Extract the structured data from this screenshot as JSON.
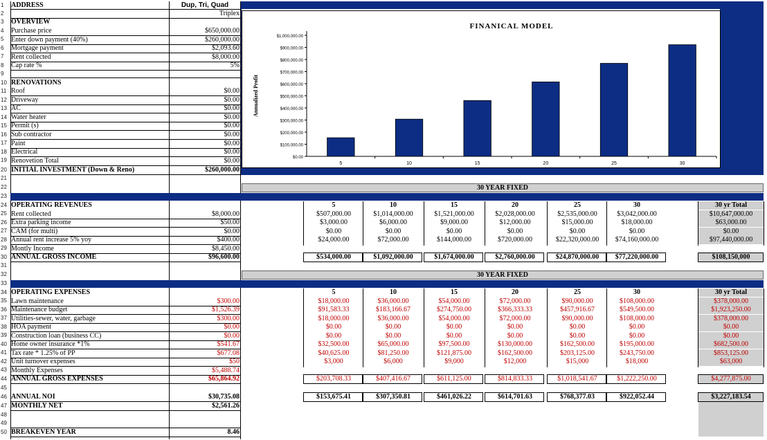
{
  "rows": {
    "1": "1",
    "2": "2",
    "3": "3",
    "4": "4",
    "5": "5",
    "6": "6",
    "7": "7",
    "8": "8",
    "9": "9",
    "10": "10",
    "11": "11",
    "12": "12",
    "13": "13",
    "14": "14",
    "15": "15",
    "16": "16",
    "17": "17",
    "18": "18",
    "19": "19",
    "20": "20",
    "21": "21",
    "22": "22",
    "23": "23",
    "24": "24",
    "25": "25",
    "26": "26",
    "27": "27",
    "28": "28",
    "29": "29",
    "30": "30",
    "31": "31",
    "32": "32",
    "33": "33",
    "34": "34",
    "35": "35",
    "36": "36",
    "37": "37",
    "38": "38",
    "39": "39",
    "40": "40",
    "41": "41",
    "42": "42",
    "43": "43",
    "44": "44",
    "45": "45",
    "46": "46",
    "47": "47",
    "48": "48",
    "49": "49",
    "50": "50"
  },
  "header": {
    "address": "ADDRESS",
    "type_label": "Dup, Tri, Quad",
    "type_value": "Triplex"
  },
  "overview": {
    "title": "OVERVIEW",
    "items": [
      {
        "label": "Purchase price",
        "value": "$650,000.00"
      },
      {
        "label": "Enter down payment (40%)",
        "value": "$260,000.00"
      },
      {
        "label": "Mortgage payment",
        "value": "$2,093.60"
      },
      {
        "label": "Rent collected",
        "value": "$8,000.00"
      },
      {
        "label": "Cap rate %",
        "value": "5%"
      }
    ]
  },
  "renovations": {
    "title": "RENOVATIONS",
    "items": [
      {
        "label": "Roof",
        "value": "$0.00"
      },
      {
        "label": "Driveway",
        "value": "$0.00"
      },
      {
        "label": "AC",
        "value": "$0.00"
      },
      {
        "label": "Water heater",
        "value": "$0.00"
      },
      {
        "label": "Permit (s)",
        "value": "$0.00"
      },
      {
        "label": "Sub contractor",
        "value": "$0.00"
      },
      {
        "label": "Paint",
        "value": "$0.00"
      },
      {
        "label": "Electrical",
        "value": "$0.00"
      },
      {
        "label": "Renovetion Total",
        "value": "$0.00"
      }
    ],
    "initial_label": "INITIAL INVESTMENT (Down & Reno)",
    "initial_value": "$260,000.00"
  },
  "chart_data": {
    "type": "bar",
    "title": "FINANICAL MODEL",
    "ylabel": "Annualized Profit",
    "xlabel": "",
    "categories": [
      "5",
      "10",
      "15",
      "20",
      "25",
      "30"
    ],
    "values": [
      153675.41,
      307350.81,
      461026.22,
      614701.63,
      768377.03,
      922052.44
    ],
    "ylim": [
      0,
      1000000
    ],
    "yticks": [
      "$0.00",
      "$100,000.00",
      "$200,000.00",
      "$300,000.00",
      "$400,000.00",
      "$500,000.00",
      "$600,000.00",
      "$700,000.00",
      "$800,000.00",
      "$900,000.00",
      "$1,000,000.00"
    ],
    "bar_color": "#0c2d83",
    "grid": false
  },
  "fixed_label": "30 YEAR FIXED",
  "years": [
    "5",
    "10",
    "15",
    "20",
    "25",
    "30"
  ],
  "total_header": "30 yr Total",
  "revenues": {
    "title": "OPERATING REVENUES",
    "rows": [
      {
        "label": "Rent collected",
        "value": "$8,000.00",
        "cols": [
          "$507,000.00",
          "$1,014,000.00",
          "$1,521,000.00",
          "$2,028,000.00",
          "$2,535,000.00",
          "$3,042,000.00"
        ],
        "total": "$10,647,000.00"
      },
      {
        "label": "Extra parking income",
        "value": "$50.00",
        "cols": [
          "$3,000.00",
          "$6,000.00",
          "$9,000.00",
          "$12,000.00",
          "$15,000.00",
          "$18,000.00"
        ],
        "total": "$63,000.00"
      },
      {
        "label": "CAM (for multi)",
        "value": "$0.00",
        "cols": [
          "$0.00",
          "$0.00",
          "$0.00",
          "$0.00",
          "$0.00",
          "$0.00"
        ],
        "total": "$0.00"
      },
      {
        "label": "Annual rent increase 5% yoy",
        "value": "$400.00",
        "cols": [
          "$24,000.00",
          "$72,000.00",
          "$144,000.00",
          "$720,000.00",
          "$22,320,000.00",
          "$74,160,000.00"
        ],
        "total": "$97,440,000.00"
      },
      {
        "label": "Montly Income",
        "value": "$8,450.00"
      }
    ],
    "gross_label": "ANNUAL GROSS INCOME",
    "gross_value": "$96,600.00",
    "gross_cols": [
      "$534,000.00",
      "$1,092,000.00",
      "$1,674,000.00",
      "$2,760,000.00",
      "$24,870,000.00",
      "$77,220,000.00"
    ],
    "gross_total": "$108,150,000"
  },
  "expenses": {
    "title": "OPERATING EXPENSES",
    "rows": [
      {
        "label": "Lawn maintenance",
        "value": "$300.00",
        "cols": [
          "$18,000.00",
          "$36,000.00",
          "$54,000.00",
          "$72,000.00",
          "$90,000.00",
          "$108,000.00"
        ],
        "total": "$378,000.00"
      },
      {
        "label": "Maintenance budget",
        "value": "$1,526.39",
        "cols": [
          "$91,583.33",
          "$183,166.67",
          "$274,750.00",
          "$366,333.33",
          "$457,916.67",
          "$549,500.00"
        ],
        "total": "$1,923,250.00"
      },
      {
        "label": "Utilities-sewer, water, garbage",
        "value": "$300.00",
        "cols": [
          "$18,000.00",
          "$36,000.00",
          "$54,000.00",
          "$72,000.00",
          "$90,000.00",
          "$108,000.00"
        ],
        "total": "$378,000.00"
      },
      {
        "label": "HOA payment",
        "value": "$0.00",
        "cols": [
          "$0.00",
          "$0.00",
          "$0.00",
          "$0.00",
          "$0.00",
          "$0.00"
        ],
        "total": "$0.00"
      },
      {
        "label": "Construction loan (business CC)",
        "value": "$0.00",
        "cols": [
          "$0.00",
          "$0.00",
          "$0.00",
          "$0.00",
          "$0.00",
          "$0.00"
        ],
        "total": "$0.00"
      },
      {
        "label": "Home owner insurance *1%",
        "value": "$541.67",
        "cols": [
          "$32,500.00",
          "$65,000.00",
          "$97,500.00",
          "$130,000.00",
          "$162,500.00",
          "$195,000.00"
        ],
        "total": "$682,500.00"
      },
      {
        "label": "Tax rate * 1.25% of PP",
        "value": "$677.08",
        "cols": [
          "$40,625.00",
          "$81,250.00",
          "$121,875.00",
          "$162,500.00",
          "$203,125.00",
          "$243,750.00"
        ],
        "total": "$853,125.00"
      },
      {
        "label": "Unit turnover expenses",
        "value": "$50",
        "cols": [
          "$3,000",
          "$6,000",
          "$9,000",
          "$12,000",
          "$15,000",
          "$18,000"
        ],
        "total": "$63,000"
      },
      {
        "label": "Monthly Expenses",
        "value": "$5,488.74"
      }
    ],
    "gross_label": "ANNUAL GROSS EXPENSES",
    "gross_value": "$65,864.92",
    "gross_cols": [
      "$203,708.33",
      "$407,416.67",
      "$611,125.00",
      "$814,833.33",
      "$1,018,541.67",
      "$1,222,250.00"
    ],
    "gross_total": "$4,277,875.00"
  },
  "noi": {
    "label": "ANNUAL NOI",
    "value": "$30,735.08",
    "cols": [
      "$153,675.41",
      "$307,350.81",
      "$461,026.22",
      "$614,701.63",
      "$768,377.03",
      "$922,052.44"
    ],
    "total": "$3,227,183.54"
  },
  "net": {
    "label": "MONTHLY NET",
    "value": "$2,561.26"
  },
  "breakeven": {
    "label": "BREAKEVEN YEAR",
    "value": "8.46"
  }
}
